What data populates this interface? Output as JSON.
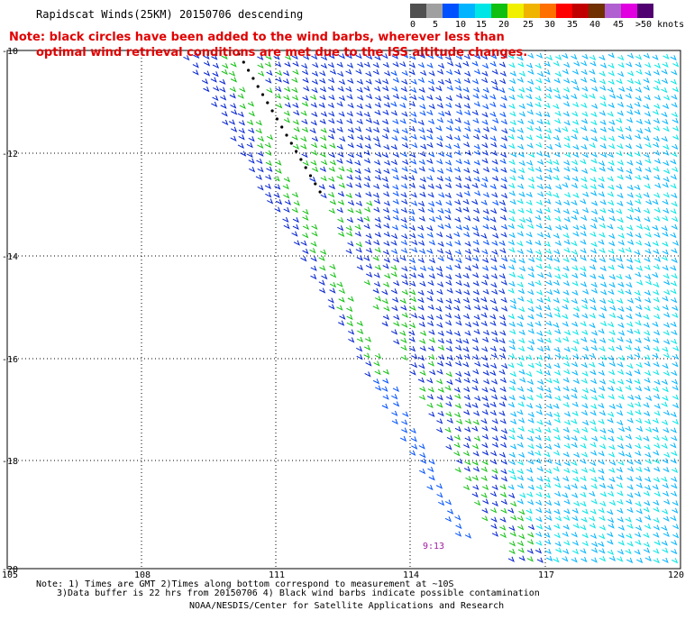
{
  "title": "Rapidscat Winds(25KM) 20150706 descending",
  "note_line1": "Note: black circles have been added to the wind barbs, wherever less than",
  "note_line2": "optimal wind retrieval conditions are met due to the ISS altitude changes.",
  "color_scale": {
    "colors": [
      "#505050",
      "#a0a0a0",
      "#0050ff",
      "#00b4ff",
      "#00e6e6",
      "#10c010",
      "#f0f000",
      "#f0b400",
      "#ff7000",
      "#ff0000",
      "#c00000",
      "#703000",
      "#b060d0",
      "#e000e0",
      "#500070"
    ],
    "labels": [
      "0",
      "5",
      "10",
      "15",
      "20",
      "25",
      "30",
      "35",
      "40",
      "45",
      ">50 knots"
    ]
  },
  "map": {
    "lat_labels": [
      "-10",
      "-12",
      "-14",
      "-16",
      "-18",
      "-20"
    ],
    "lon_labels": [
      "105",
      "108",
      "111",
      "114",
      "117",
      "120"
    ],
    "time_label": "9:13"
  },
  "footer": {
    "line1": "Note: 1) Times are GMT 2)Times along bottom correspond to measurement at ~10S",
    "line2": "3)Data buffer is 22 hrs from 20150706 4) Black wind barbs indicate possible contamination",
    "line3": "NOAA/NESDIS/Center for Satellite Applications and Research"
  }
}
